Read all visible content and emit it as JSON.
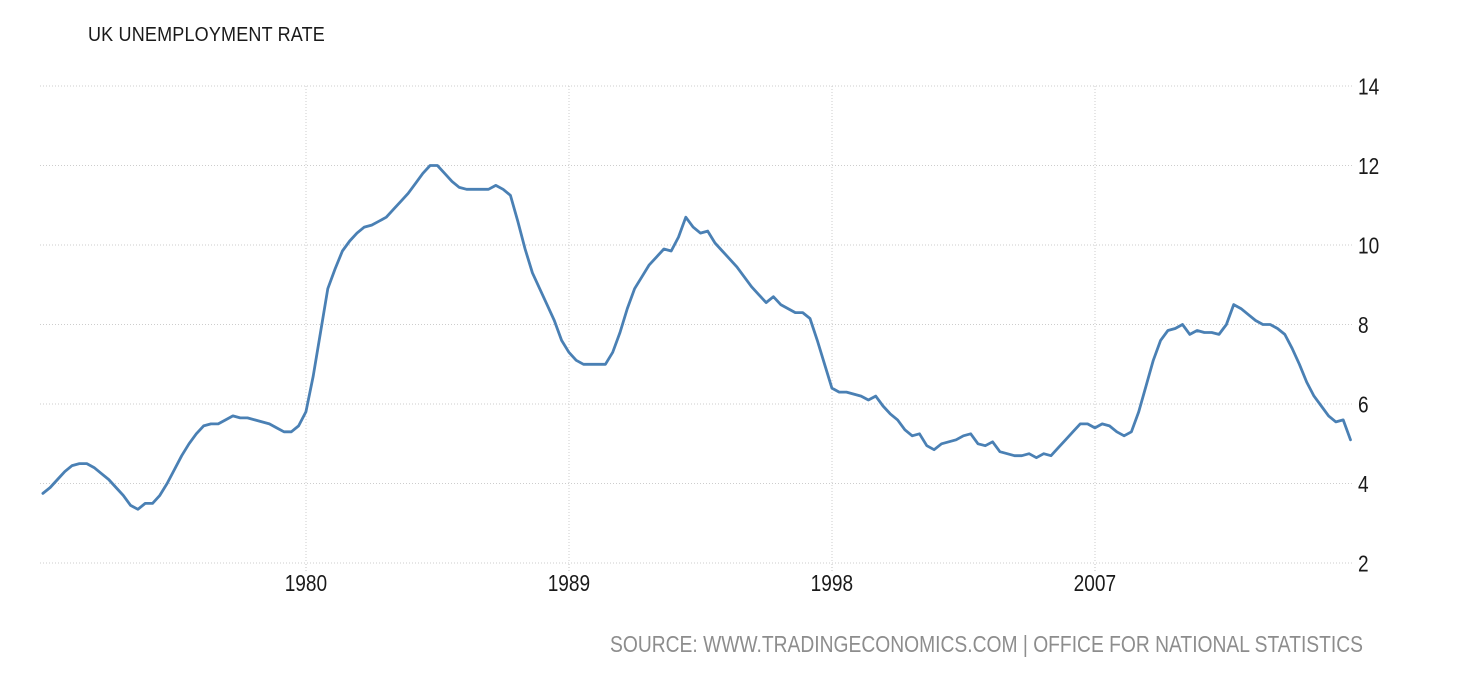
{
  "chart_data": {
    "type": "line",
    "title": "UK UNEMPLOYMENT RATE",
    "source": "SOURCE: WWW.TRADINGECONOMICS.COM | OFFICE FOR NATIONAL STATISTICS",
    "xlabel": "",
    "ylabel": "",
    "x_range": [
      1970.9,
      2015.8
    ],
    "y_range": [
      2,
      14
    ],
    "grid": true,
    "grid_style": "dotted",
    "legend": "none",
    "x_ticks": [
      {
        "value": 1980,
        "label": "1980"
      },
      {
        "value": 1989,
        "label": "1989"
      },
      {
        "value": 1998,
        "label": "1998"
      },
      {
        "value": 2007,
        "label": "2007"
      }
    ],
    "y_ticks": [
      {
        "value": 2,
        "label": "2"
      },
      {
        "value": 4,
        "label": "4"
      },
      {
        "value": 6,
        "label": "6"
      },
      {
        "value": 8,
        "label": "8"
      },
      {
        "value": 10,
        "label": "10"
      },
      {
        "value": 12,
        "label": "12"
      },
      {
        "value": 14,
        "label": "14"
      }
    ],
    "colors": {
      "line": "#4a80b4",
      "grid": "#cdcdcd",
      "tick_mark": "#c2c2c2",
      "tick_text": "#1a1a1a",
      "title_text": "#1a1a1a",
      "source_text": "#8d8d8d",
      "background": "#ffffff"
    },
    "series": [
      {
        "name": "UK Unemployment Rate",
        "unit": "percent",
        "frequency": "quarterly",
        "x_start": 1971.0,
        "x_step_years": 0.25,
        "values": [
          3.75,
          3.9,
          4.1,
          4.3,
          4.45,
          4.5,
          4.5,
          4.4,
          4.25,
          4.1,
          3.9,
          3.7,
          3.45,
          3.35,
          3.5,
          3.5,
          3.7,
          4.0,
          4.35,
          4.7,
          5.0,
          5.25,
          5.45,
          5.5,
          5.5,
          5.6,
          5.7,
          5.65,
          5.65,
          5.6,
          5.55,
          5.5,
          5.4,
          5.3,
          5.3,
          5.45,
          5.8,
          6.7,
          7.8,
          8.9,
          9.4,
          9.85,
          10.1,
          10.3,
          10.45,
          10.5,
          10.6,
          10.7,
          10.9,
          11.1,
          11.3,
          11.55,
          11.8,
          12.0,
          12.0,
          11.8,
          11.6,
          11.45,
          11.4,
          11.4,
          11.4,
          11.4,
          11.5,
          11.4,
          11.25,
          10.6,
          9.9,
          9.3,
          8.9,
          8.5,
          8.1,
          7.6,
          7.3,
          7.1,
          7.0,
          7.0,
          7.0,
          7.0,
          7.3,
          7.8,
          8.4,
          8.9,
          9.2,
          9.5,
          9.7,
          9.9,
          9.85,
          10.2,
          10.7,
          10.45,
          10.3,
          10.35,
          10.05,
          9.85,
          9.65,
          9.45,
          9.2,
          8.95,
          8.75,
          8.55,
          8.7,
          8.5,
          8.4,
          8.3,
          8.3,
          8.15,
          7.6,
          7.0,
          6.4,
          6.3,
          6.3,
          6.25,
          6.2,
          6.1,
          6.2,
          5.95,
          5.75,
          5.6,
          5.35,
          5.2,
          5.25,
          4.95,
          4.85,
          5.0,
          5.05,
          5.1,
          5.2,
          5.25,
          5.0,
          4.95,
          5.05,
          4.8,
          4.75,
          4.7,
          4.7,
          4.75,
          4.65,
          4.75,
          4.7,
          4.9,
          5.1,
          5.3,
          5.5,
          5.5,
          5.4,
          5.5,
          5.45,
          5.3,
          5.2,
          5.3,
          5.8,
          6.45,
          7.1,
          7.6,
          7.85,
          7.9,
          8.0,
          7.75,
          7.85,
          7.8,
          7.8,
          7.75,
          8.0,
          8.5,
          8.4,
          8.25,
          8.1,
          8.0,
          8.0,
          7.9,
          7.75,
          7.4,
          7.0,
          6.55,
          6.2,
          5.95,
          5.7,
          5.55,
          5.6,
          5.1
        ]
      }
    ]
  }
}
